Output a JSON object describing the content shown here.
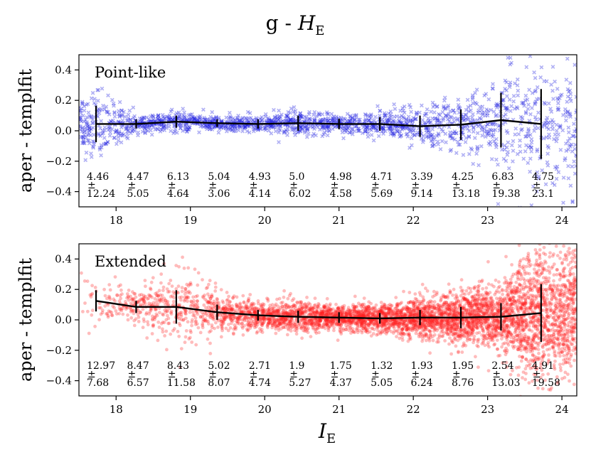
{
  "figure": {
    "title_prefix": "g - ",
    "title_var": "H",
    "title_sub": "E",
    "xlabel_var": "I",
    "xlabel_sub": "E"
  },
  "colors": {
    "point_like": "#2020e0",
    "extended": "#ff2020",
    "line": "#000000"
  },
  "chart_data": [
    {
      "type": "scatter",
      "panel": "Point-like",
      "label": "Point-like",
      "ylabel": "aper - templfit",
      "xlim": [
        17.5,
        24.2
      ],
      "ylim": [
        -0.5,
        0.5
      ],
      "xticks": [
        18,
        19,
        20,
        21,
        22,
        23,
        24
      ],
      "yticks": [
        -0.4,
        -0.2,
        0.0,
        0.2,
        0.4
      ],
      "ytick_labels": [
        "−0.4",
        "−0.2",
        "0.0",
        "0.2",
        "0.4"
      ],
      "marker": "x",
      "bins_x": [
        17.73,
        18.27,
        18.81,
        19.36,
        19.91,
        20.45,
        21.0,
        21.55,
        22.09,
        22.64,
        23.18,
        23.72
      ],
      "median": [
        0.045,
        0.045,
        0.06,
        0.05,
        0.045,
        0.05,
        0.045,
        0.045,
        0.03,
        0.04,
        0.07,
        0.045
      ],
      "err_low": [
        0.12,
        0.03,
        0.04,
        0.025,
        0.03,
        0.05,
        0.035,
        0.045,
        0.07,
        0.1,
        0.18,
        0.23
      ],
      "err_high": [
        0.12,
        0.03,
        0.04,
        0.025,
        0.03,
        0.05,
        0.035,
        0.045,
        0.07,
        0.1,
        0.18,
        0.23
      ],
      "annot_top": [
        "4.46",
        "4.47",
        "6.13",
        "5.04",
        "4.93",
        "5.0",
        "4.98",
        "4.71",
        "3.39",
        "4.25",
        "6.83",
        "4.75"
      ],
      "annot_bottom": [
        "12.24",
        "5.05",
        "4.64",
        "3.06",
        "4.14",
        "6.02",
        "4.58",
        "5.69",
        "9.14",
        "13.18",
        "19.38",
        "23.1"
      ],
      "pm": "±"
    },
    {
      "type": "scatter",
      "panel": "Extended",
      "label": "Extended",
      "ylabel": "aper - templfit",
      "xlim": [
        17.5,
        24.2
      ],
      "ylim": [
        -0.5,
        0.5
      ],
      "xticks": [
        18,
        19,
        20,
        21,
        22,
        23,
        24
      ],
      "yticks": [
        -0.4,
        -0.2,
        0.0,
        0.2,
        0.4
      ],
      "ytick_labels": [
        "−0.4",
        "−0.2",
        "0.0",
        "0.2",
        "0.4"
      ],
      "marker": "o",
      "bins_x": [
        17.73,
        18.27,
        18.81,
        19.36,
        19.91,
        20.45,
        21.0,
        21.55,
        22.09,
        22.64,
        23.18,
        23.72
      ],
      "median": [
        0.125,
        0.085,
        0.085,
        0.05,
        0.03,
        0.02,
        0.015,
        0.01,
        0.015,
        0.015,
        0.02,
        0.045
      ],
      "err_low": [
        0.07,
        0.04,
        0.11,
        0.05,
        0.035,
        0.04,
        0.035,
        0.035,
        0.05,
        0.07,
        0.09,
        0.19
      ],
      "err_high": [
        0.07,
        0.04,
        0.11,
        0.05,
        0.035,
        0.04,
        0.035,
        0.035,
        0.05,
        0.07,
        0.09,
        0.19
      ],
      "annot_top": [
        "12.97",
        "8.47",
        "8.43",
        "5.02",
        "2.71",
        "1.9",
        "1.75",
        "1.32",
        "1.93",
        "1.95",
        "2.54",
        "4.91"
      ],
      "annot_bottom": [
        "7.68",
        "6.57",
        "11.58",
        "8.07",
        "4.74",
        "5.27",
        "4.37",
        "5.05",
        "6.24",
        "8.76",
        "13.03",
        "19.58"
      ],
      "pm": "±"
    }
  ]
}
